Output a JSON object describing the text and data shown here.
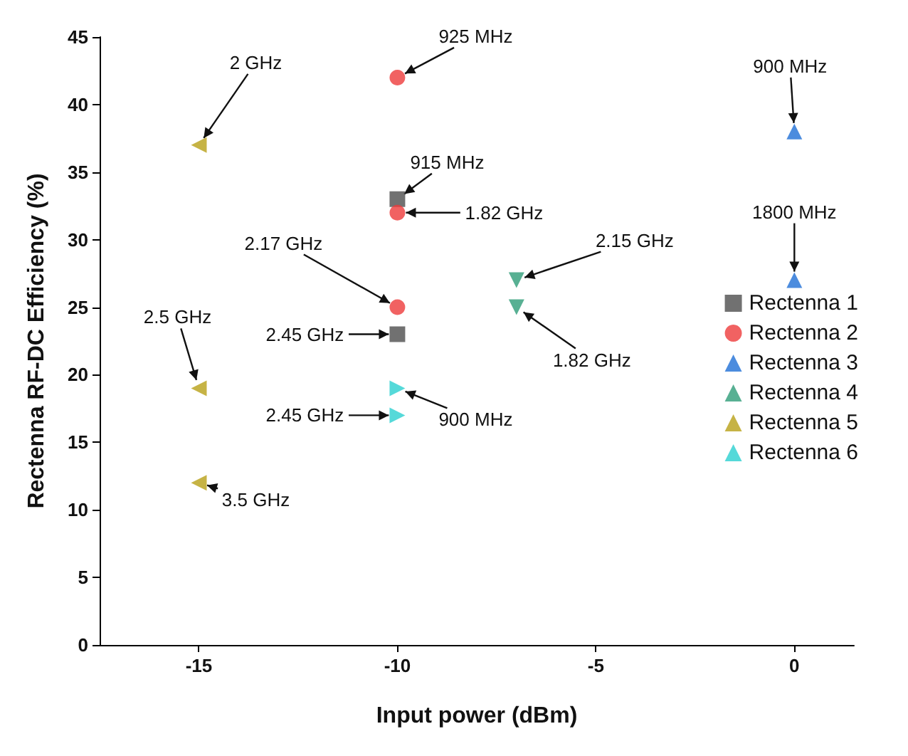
{
  "chart_data": {
    "type": "scatter",
    "xlabel": "Input power (dBm)",
    "ylabel": "Rectenna RF-DC Efficiency (%)",
    "xlim": [
      -17.5,
      1.5
    ],
    "xticks": [
      -15,
      -10,
      -5,
      0
    ],
    "ylim": [
      0,
      45
    ],
    "yticks": [
      0,
      5,
      10,
      15,
      20,
      25,
      30,
      35,
      40,
      45
    ],
    "grid": false,
    "legend": "right",
    "series": [
      {
        "name": "Rectenna 1",
        "color": "#4d4d4d",
        "marker": "square",
        "x": [
          -10,
          -10
        ],
        "values": [
          33,
          23
        ]
      },
      {
        "name": "Rectenna 2",
        "color": "#ee3b3b",
        "marker": "circle",
        "x": [
          -10,
          -10,
          -10
        ],
        "values": [
          42,
          32,
          25
        ]
      },
      {
        "name": "Rectenna 3",
        "color": "#1f6fd6",
        "marker": "triangle",
        "x": [
          0,
          0
        ],
        "values": [
          38,
          27
        ]
      },
      {
        "name": "Rectenna 4",
        "color": "#2e9c78",
        "marker": "triangle-down",
        "x": [
          -7,
          -7
        ],
        "values": [
          27,
          25
        ]
      },
      {
        "name": "Rectenna 5",
        "color": "#b8a016",
        "marker": "triangle-left",
        "x": [
          -15,
          -15,
          -15
        ],
        "values": [
          37,
          19,
          12
        ]
      },
      {
        "name": "Rectenna 6",
        "color": "#2ad0d0",
        "marker": "triangle-right",
        "x": [
          -10,
          -10
        ],
        "values": [
          19,
          17
        ]
      }
    ],
    "annotations": [
      {
        "text": "925 MHz",
        "x": -10,
        "y": 42
      },
      {
        "text": "915 MHz",
        "x": -10,
        "y": 33
      },
      {
        "text": "1.82 GHz",
        "x": -10,
        "y": 32
      },
      {
        "text": "2.17 GHz",
        "x": -10,
        "y": 25
      },
      {
        "text": "2.45 GHz",
        "x": -10,
        "y": 23
      },
      {
        "text": "900 MHz",
        "x": 0,
        "y": 38
      },
      {
        "text": "1800 MHz",
        "x": 0,
        "y": 27
      },
      {
        "text": "2.15 GHz",
        "x": -7,
        "y": 27
      },
      {
        "text": "1.82 GHz",
        "x": -7,
        "y": 25
      },
      {
        "text": "2 GHz",
        "x": -15,
        "y": 37
      },
      {
        "text": "2.5 GHz",
        "x": -15,
        "y": 19
      },
      {
        "text": "3.5 GHz",
        "x": -15,
        "y": 12
      },
      {
        "text": "900 MHz",
        "x": -10,
        "y": 19
      },
      {
        "text": "2.45 GHz",
        "x": -10,
        "y": 17
      }
    ]
  }
}
